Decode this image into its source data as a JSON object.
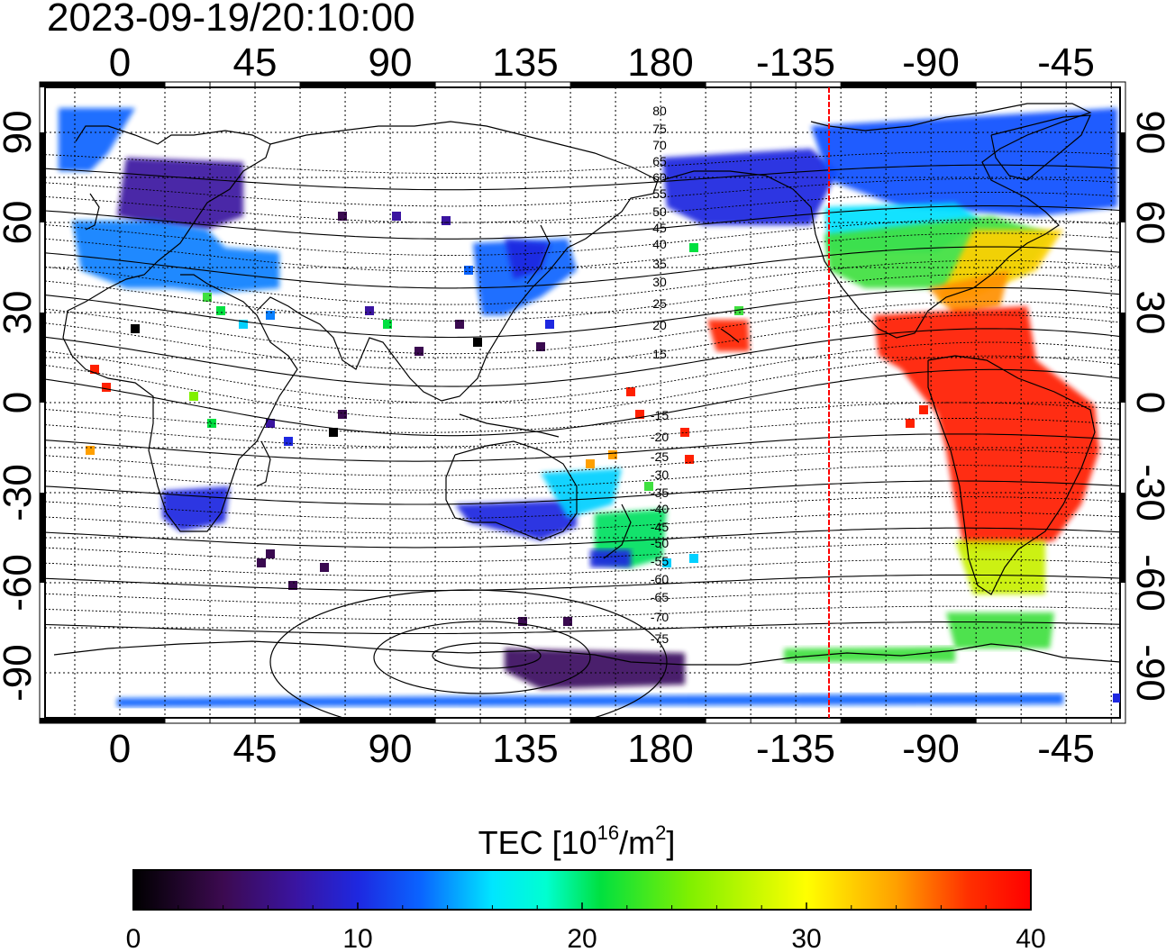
{
  "timestamp": "2023-09-19/20:10:00",
  "lon_ticks": [
    "0",
    "45",
    "90",
    "135",
    "180",
    "-135",
    "-90",
    "-45"
  ],
  "lat_ticks": [
    "90",
    "60",
    "30",
    "0",
    "-30",
    "-60",
    "-90"
  ],
  "contour_labels_north": [
    "80",
    "75",
    "70",
    "65",
    "60",
    "55",
    "50",
    "45",
    "40",
    "35",
    "30",
    "25",
    "20",
    "15"
  ],
  "contour_labels_south": [
    "-15",
    "-20",
    "-25",
    "-30",
    "-35",
    "-40",
    "-45",
    "-50",
    "-55",
    "-60",
    "-65",
    "-70",
    "-75"
  ],
  "colorbar": {
    "title_main": "TEC  [10",
    "title_exp1": "16",
    "title_mid": "/m",
    "title_exp2": "2",
    "title_end": "]",
    "ticks": [
      "0",
      "10",
      "20",
      "30",
      "40"
    ],
    "min": 0,
    "max": 40
  },
  "colors": {
    "red_line": "#ff0000",
    "colormap": [
      "#000000",
      "#3c0a50",
      "#3a14a0",
      "#1e28e0",
      "#0a64ff",
      "#00c8ff",
      "#00ffd0",
      "#00e040",
      "#80f000",
      "#ffff00",
      "#ffa000",
      "#ff3000",
      "#ff0000"
    ]
  },
  "meridian_marker": "-115"
}
